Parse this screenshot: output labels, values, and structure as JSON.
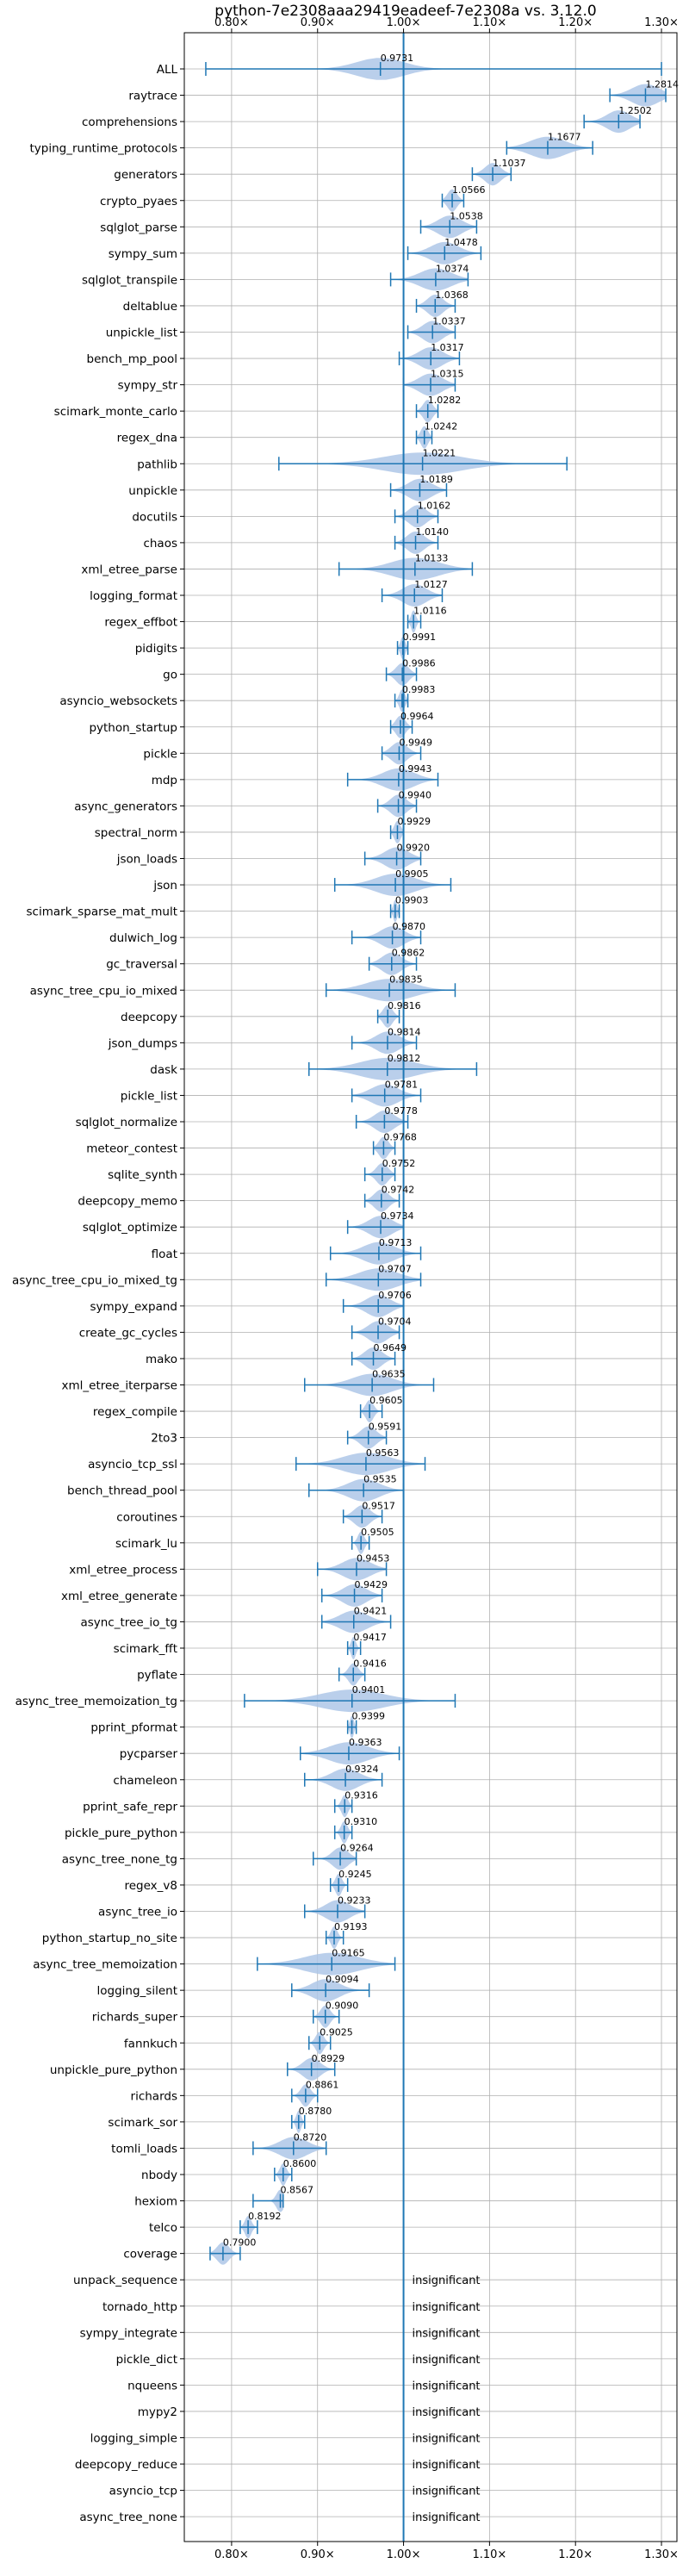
{
  "chart_data": {
    "type": "violin",
    "title": "python-7e2308aaa29419eadeef-7e2308a vs. 3.12.0",
    "xlabel": "",
    "ylabel": "",
    "xlim": [
      0.745,
      1.318
    ],
    "x_ticks": [
      {
        "value": 0.8,
        "label": "0.80×"
      },
      {
        "value": 0.9,
        "label": "0.90×"
      },
      {
        "value": 1.0,
        "label": "1.00×"
      },
      {
        "value": 1.1,
        "label": "1.10×"
      },
      {
        "value": 1.2,
        "label": "1.20×"
      },
      {
        "value": 1.3,
        "label": "1.30×"
      }
    ],
    "grid": true,
    "reference_line": 1.0,
    "colors": {
      "violin": "#aec7e8",
      "whisker": "#1f77b4",
      "reference": "#1f77b4",
      "grid": "#b0b0b0"
    },
    "insignificant_text": "insignificant",
    "benchmarks": [
      {
        "name": "ALL",
        "label": "0.9731",
        "median": 0.9731,
        "min": 0.77,
        "max": 1.3,
        "spread": 0.06
      },
      {
        "name": "raytrace",
        "label": "1.2814",
        "median": 1.2814,
        "min": 1.24,
        "max": 1.305,
        "spread": 0.035
      },
      {
        "name": "comprehensions",
        "label": "1.2502",
        "median": 1.2502,
        "min": 1.21,
        "max": 1.275,
        "spread": 0.03
      },
      {
        "name": "typing_runtime_protocols",
        "label": "1.1677",
        "median": 1.1677,
        "min": 1.12,
        "max": 1.22,
        "spread": 0.045
      },
      {
        "name": "generators",
        "label": "1.1037",
        "median": 1.1037,
        "min": 1.08,
        "max": 1.125,
        "spread": 0.02
      },
      {
        "name": "crypto_pyaes",
        "label": "1.0566",
        "median": 1.0566,
        "min": 1.045,
        "max": 1.07,
        "spread": 0.012
      },
      {
        "name": "sqlglot_parse",
        "label": "1.0538",
        "median": 1.0538,
        "min": 1.02,
        "max": 1.085,
        "spread": 0.03
      },
      {
        "name": "sympy_sum",
        "label": "1.0478",
        "median": 1.0478,
        "min": 1.005,
        "max": 1.09,
        "spread": 0.035
      },
      {
        "name": "sqlglot_transpile",
        "label": "1.0374",
        "median": 1.0374,
        "min": 0.985,
        "max": 1.075,
        "spread": 0.04
      },
      {
        "name": "deltablue",
        "label": "1.0368",
        "median": 1.0368,
        "min": 1.015,
        "max": 1.06,
        "spread": 0.02
      },
      {
        "name": "unpickle_list",
        "label": "1.0337",
        "median": 1.0337,
        "min": 1.005,
        "max": 1.06,
        "spread": 0.025
      },
      {
        "name": "bench_mp_pool",
        "label": "1.0317",
        "median": 1.0317,
        "min": 0.995,
        "max": 1.065,
        "spread": 0.03
      },
      {
        "name": "sympy_str",
        "label": "1.0315",
        "median": 1.0315,
        "min": 1.0,
        "max": 1.06,
        "spread": 0.03
      },
      {
        "name": "scimark_monte_carlo",
        "label": "1.0282",
        "median": 1.0282,
        "min": 1.015,
        "max": 1.04,
        "spread": 0.012
      },
      {
        "name": "regex_dna",
        "label": "1.0242",
        "median": 1.0242,
        "min": 1.015,
        "max": 1.033,
        "spread": 0.009
      },
      {
        "name": "pathlib",
        "label": "1.0221",
        "median": 1.0221,
        "min": 0.855,
        "max": 1.19,
        "spread": 0.1
      },
      {
        "name": "unpickle",
        "label": "1.0189",
        "median": 1.0189,
        "min": 0.985,
        "max": 1.05,
        "spread": 0.03
      },
      {
        "name": "docutils",
        "label": "1.0162",
        "median": 1.0162,
        "min": 0.99,
        "max": 1.04,
        "spread": 0.022
      },
      {
        "name": "chaos",
        "label": "1.0140",
        "median": 1.014,
        "min": 0.99,
        "max": 1.04,
        "spread": 0.022
      },
      {
        "name": "xml_etree_parse",
        "label": "1.0133",
        "median": 1.0133,
        "min": 0.925,
        "max": 1.08,
        "spread": 0.06
      },
      {
        "name": "logging_format",
        "label": "1.0127",
        "median": 1.0127,
        "min": 0.975,
        "max": 1.045,
        "spread": 0.03
      },
      {
        "name": "regex_effbot",
        "label": "1.0116",
        "median": 1.0116,
        "min": 1.005,
        "max": 1.02,
        "spread": 0.006
      },
      {
        "name": "pidigits",
        "label": "0.9991",
        "median": 0.9991,
        "min": 0.993,
        "max": 1.005,
        "spread": 0.006
      },
      {
        "name": "go",
        "label": "0.9986",
        "median": 0.9986,
        "min": 0.98,
        "max": 1.015,
        "spread": 0.016
      },
      {
        "name": "asyncio_websockets",
        "label": "0.9983",
        "median": 0.9983,
        "min": 0.99,
        "max": 1.005,
        "spread": 0.007
      },
      {
        "name": "python_startup",
        "label": "0.9964",
        "median": 0.9964,
        "min": 0.985,
        "max": 1.01,
        "spread": 0.012
      },
      {
        "name": "pickle",
        "label": "0.9949",
        "median": 0.9949,
        "min": 0.975,
        "max": 1.02,
        "spread": 0.02
      },
      {
        "name": "mdp",
        "label": "0.9943",
        "median": 0.9943,
        "min": 0.935,
        "max": 1.04,
        "spread": 0.04
      },
      {
        "name": "async_generators",
        "label": "0.9940",
        "median": 0.994,
        "min": 0.97,
        "max": 1.015,
        "spread": 0.02
      },
      {
        "name": "spectral_norm",
        "label": "0.9929",
        "median": 0.9929,
        "min": 0.985,
        "max": 1.0,
        "spread": 0.008
      },
      {
        "name": "json_loads",
        "label": "0.9920",
        "median": 0.992,
        "min": 0.955,
        "max": 1.02,
        "spread": 0.03
      },
      {
        "name": "json",
        "label": "0.9905",
        "median": 0.9905,
        "min": 0.92,
        "max": 1.055,
        "spread": 0.05
      },
      {
        "name": "scimark_sparse_mat_mult",
        "label": "0.9903",
        "median": 0.9903,
        "min": 0.985,
        "max": 0.995,
        "spread": 0.005
      },
      {
        "name": "dulwich_log",
        "label": "0.9870",
        "median": 0.987,
        "min": 0.94,
        "max": 1.02,
        "spread": 0.03
      },
      {
        "name": "gc_traversal",
        "label": "0.9862",
        "median": 0.9862,
        "min": 0.96,
        "max": 1.015,
        "spread": 0.025
      },
      {
        "name": "async_tree_cpu_io_mixed",
        "label": "0.9835",
        "median": 0.9835,
        "min": 0.91,
        "max": 1.06,
        "spread": 0.06
      },
      {
        "name": "deepcopy",
        "label": "0.9816",
        "median": 0.9816,
        "min": 0.97,
        "max": 0.995,
        "spread": 0.012
      },
      {
        "name": "json_dumps",
        "label": "0.9814",
        "median": 0.9814,
        "min": 0.94,
        "max": 1.015,
        "spread": 0.03
      },
      {
        "name": "dask",
        "label": "0.9812",
        "median": 0.9812,
        "min": 0.89,
        "max": 1.085,
        "spread": 0.07
      },
      {
        "name": "pickle_list",
        "label": "0.9781",
        "median": 0.9781,
        "min": 0.94,
        "max": 1.02,
        "spread": 0.035
      },
      {
        "name": "sqlglot_normalize",
        "label": "0.9778",
        "median": 0.9778,
        "min": 0.945,
        "max": 1.005,
        "spread": 0.025
      },
      {
        "name": "meteor_contest",
        "label": "0.9768",
        "median": 0.9768,
        "min": 0.965,
        "max": 0.99,
        "spread": 0.012
      },
      {
        "name": "sqlite_synth",
        "label": "0.9752",
        "median": 0.9752,
        "min": 0.955,
        "max": 0.99,
        "spread": 0.015
      },
      {
        "name": "deepcopy_memo",
        "label": "0.9742",
        "median": 0.9742,
        "min": 0.955,
        "max": 0.995,
        "spread": 0.018
      },
      {
        "name": "sqlglot_optimize",
        "label": "0.9734",
        "median": 0.9734,
        "min": 0.935,
        "max": 1.0,
        "spread": 0.03
      },
      {
        "name": "float",
        "label": "0.9713",
        "median": 0.9713,
        "min": 0.915,
        "max": 1.02,
        "spread": 0.04
      },
      {
        "name": "async_tree_cpu_io_mixed_tg",
        "label": "0.9707",
        "median": 0.9707,
        "min": 0.91,
        "max": 1.02,
        "spread": 0.05
      },
      {
        "name": "sympy_expand",
        "label": "0.9706",
        "median": 0.9706,
        "min": 0.93,
        "max": 1.0,
        "spread": 0.03
      },
      {
        "name": "create_gc_cycles",
        "label": "0.9704",
        "median": 0.9704,
        "min": 0.94,
        "max": 0.995,
        "spread": 0.025
      },
      {
        "name": "mako",
        "label": "0.9649",
        "median": 0.9649,
        "min": 0.94,
        "max": 0.99,
        "spread": 0.022
      },
      {
        "name": "xml_etree_iterparse",
        "label": "0.9635",
        "median": 0.9635,
        "min": 0.885,
        "max": 1.035,
        "spread": 0.05
      },
      {
        "name": "regex_compile",
        "label": "0.9605",
        "median": 0.9605,
        "min": 0.95,
        "max": 0.975,
        "spread": 0.01
      },
      {
        "name": "2to3",
        "label": "0.9591",
        "median": 0.9591,
        "min": 0.935,
        "max": 0.98,
        "spread": 0.02
      },
      {
        "name": "asyncio_tcp_ssl",
        "label": "0.9563",
        "median": 0.9563,
        "min": 0.875,
        "max": 1.025,
        "spread": 0.06
      },
      {
        "name": "bench_thread_pool",
        "label": "0.9535",
        "median": 0.9535,
        "min": 0.89,
        "max": 1.0,
        "spread": 0.04
      },
      {
        "name": "coroutines",
        "label": "0.9517",
        "median": 0.9517,
        "min": 0.93,
        "max": 0.975,
        "spread": 0.02
      },
      {
        "name": "scimark_lu",
        "label": "0.9505",
        "median": 0.9505,
        "min": 0.94,
        "max": 0.96,
        "spread": 0.008
      },
      {
        "name": "xml_etree_process",
        "label": "0.9453",
        "median": 0.9453,
        "min": 0.9,
        "max": 0.98,
        "spread": 0.035
      },
      {
        "name": "xml_etree_generate",
        "label": "0.9429",
        "median": 0.9429,
        "min": 0.905,
        "max": 0.975,
        "spread": 0.03
      },
      {
        "name": "async_tree_io_tg",
        "label": "0.9421",
        "median": 0.9421,
        "min": 0.905,
        "max": 0.985,
        "spread": 0.035
      },
      {
        "name": "scimark_fft",
        "label": "0.9417",
        "median": 0.9417,
        "min": 0.935,
        "max": 0.95,
        "spread": 0.006
      },
      {
        "name": "pyflate",
        "label": "0.9416",
        "median": 0.9416,
        "min": 0.925,
        "max": 0.955,
        "spread": 0.012
      },
      {
        "name": "async_tree_memoization_tg",
        "label": "0.9401",
        "median": 0.9401,
        "min": 0.815,
        "max": 1.06,
        "spread": 0.08
      },
      {
        "name": "pprint_pformat",
        "label": "0.9399",
        "median": 0.9399,
        "min": 0.935,
        "max": 0.945,
        "spread": 0.005
      },
      {
        "name": "pycparser",
        "label": "0.9363",
        "median": 0.9363,
        "min": 0.88,
        "max": 0.995,
        "spread": 0.05
      },
      {
        "name": "chameleon",
        "label": "0.9324",
        "median": 0.9324,
        "min": 0.885,
        "max": 0.975,
        "spread": 0.035
      },
      {
        "name": "pprint_safe_repr",
        "label": "0.9316",
        "median": 0.9316,
        "min": 0.92,
        "max": 0.94,
        "spread": 0.008
      },
      {
        "name": "pickle_pure_python",
        "label": "0.9310",
        "median": 0.931,
        "min": 0.92,
        "max": 0.94,
        "spread": 0.008
      },
      {
        "name": "async_tree_none_tg",
        "label": "0.9264",
        "median": 0.9264,
        "min": 0.895,
        "max": 0.945,
        "spread": 0.02
      },
      {
        "name": "regex_v8",
        "label": "0.9245",
        "median": 0.9245,
        "min": 0.915,
        "max": 0.935,
        "spread": 0.008
      },
      {
        "name": "async_tree_io",
        "label": "0.9233",
        "median": 0.9233,
        "min": 0.885,
        "max": 0.955,
        "spread": 0.03
      },
      {
        "name": "python_startup_no_site",
        "label": "0.9193",
        "median": 0.9193,
        "min": 0.91,
        "max": 0.93,
        "spread": 0.008
      },
      {
        "name": "async_tree_memoization",
        "label": "0.9165",
        "median": 0.9165,
        "min": 0.83,
        "max": 0.99,
        "spread": 0.07
      },
      {
        "name": "logging_silent",
        "label": "0.9094",
        "median": 0.9094,
        "min": 0.87,
        "max": 0.96,
        "spread": 0.035
      },
      {
        "name": "richards_super",
        "label": "0.9090",
        "median": 0.909,
        "min": 0.895,
        "max": 0.925,
        "spread": 0.012
      },
      {
        "name": "fannkuch",
        "label": "0.9025",
        "median": 0.9025,
        "min": 0.89,
        "max": 0.915,
        "spread": 0.01
      },
      {
        "name": "unpickle_pure_python",
        "label": "0.8929",
        "median": 0.8929,
        "min": 0.865,
        "max": 0.92,
        "spread": 0.022
      },
      {
        "name": "richards",
        "label": "0.8861",
        "median": 0.8861,
        "min": 0.87,
        "max": 0.9,
        "spread": 0.012
      },
      {
        "name": "scimark_sor",
        "label": "0.8780",
        "median": 0.878,
        "min": 0.87,
        "max": 0.885,
        "spread": 0.006
      },
      {
        "name": "tomli_loads",
        "label": "0.8720",
        "median": 0.872,
        "min": 0.825,
        "max": 0.91,
        "spread": 0.035
      },
      {
        "name": "nbody",
        "label": "0.8600",
        "median": 0.86,
        "min": 0.85,
        "max": 0.87,
        "spread": 0.008
      },
      {
        "name": "hexiom",
        "label": "0.8567",
        "median": 0.8567,
        "min": 0.825,
        "max": 0.86,
        "spread": 0.01
      },
      {
        "name": "telco",
        "label": "0.8192",
        "median": 0.8192,
        "min": 0.81,
        "max": 0.83,
        "spread": 0.008
      },
      {
        "name": "coverage",
        "label": "0.7900",
        "median": 0.79,
        "min": 0.775,
        "max": 0.81,
        "spread": 0.015
      },
      {
        "name": "unpack_sequence",
        "insignificant": true
      },
      {
        "name": "tornado_http",
        "insignificant": true
      },
      {
        "name": "sympy_integrate",
        "insignificant": true
      },
      {
        "name": "pickle_dict",
        "insignificant": true
      },
      {
        "name": "nqueens",
        "insignificant": true
      },
      {
        "name": "mypy2",
        "insignificant": true
      },
      {
        "name": "logging_simple",
        "insignificant": true
      },
      {
        "name": "deepcopy_reduce",
        "insignificant": true
      },
      {
        "name": "asyncio_tcp",
        "insignificant": true
      },
      {
        "name": "async_tree_none",
        "insignificant": true
      }
    ]
  }
}
